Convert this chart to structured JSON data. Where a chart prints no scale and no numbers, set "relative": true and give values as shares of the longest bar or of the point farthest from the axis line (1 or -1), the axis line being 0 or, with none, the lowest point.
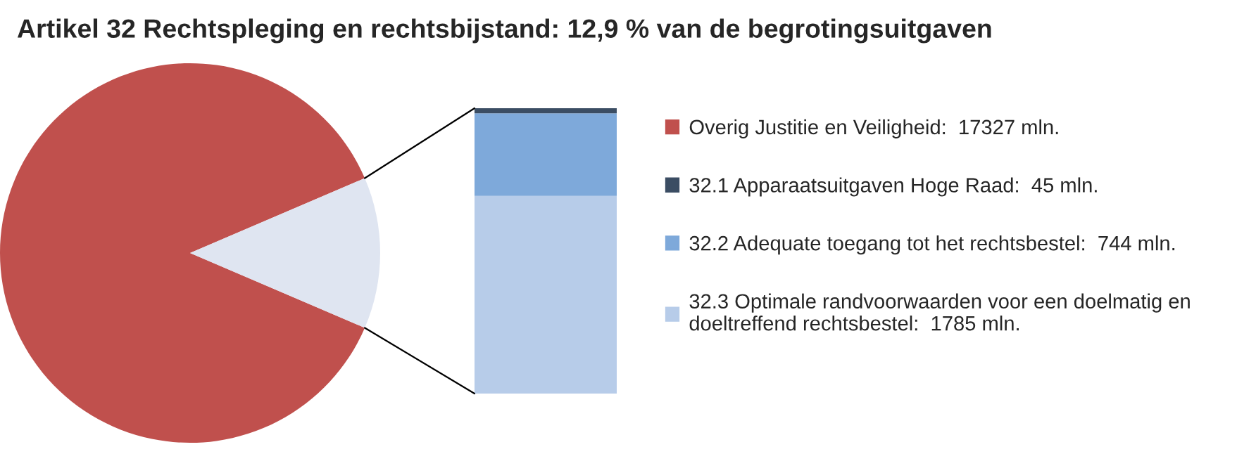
{
  "chart_data": [
    {
      "type": "pie",
      "title": "Artikel 32 Rechtspleging en rechtsbijstand: 12,9 % van de begrotingsuitgaven",
      "categories": [
        "Overig Justitie en Veiligheid:  17327 mln.",
        null
      ],
      "values": [
        87.1,
        12.9
      ],
      "colors": [
        "#c0504d",
        "#dfe5f1"
      ],
      "legend": "right"
    },
    {
      "type": "bar",
      "stacked": true,
      "relative": true,
      "categories": [
        null
      ],
      "legend": "right",
      "series": [
        {
          "name": "32.3 Optimale randvoorwaarden voor een doelmatig en\ndoeltreffend rechtsbestel:  1785 mln.",
          "color": "#b7cce9",
          "values": [
            0.693
          ]
        },
        {
          "name": "32.2 Adequate toegang tot het rechtsbestel:  744 mln.",
          "color": "#7ea9da",
          "values": [
            0.289
          ]
        },
        {
          "name": "32.1 Apparaatsuitgaven Hoge Raad:  45 mln.",
          "color": "#3b4d63",
          "values": [
            0.018
          ]
        }
      ]
    }
  ]
}
